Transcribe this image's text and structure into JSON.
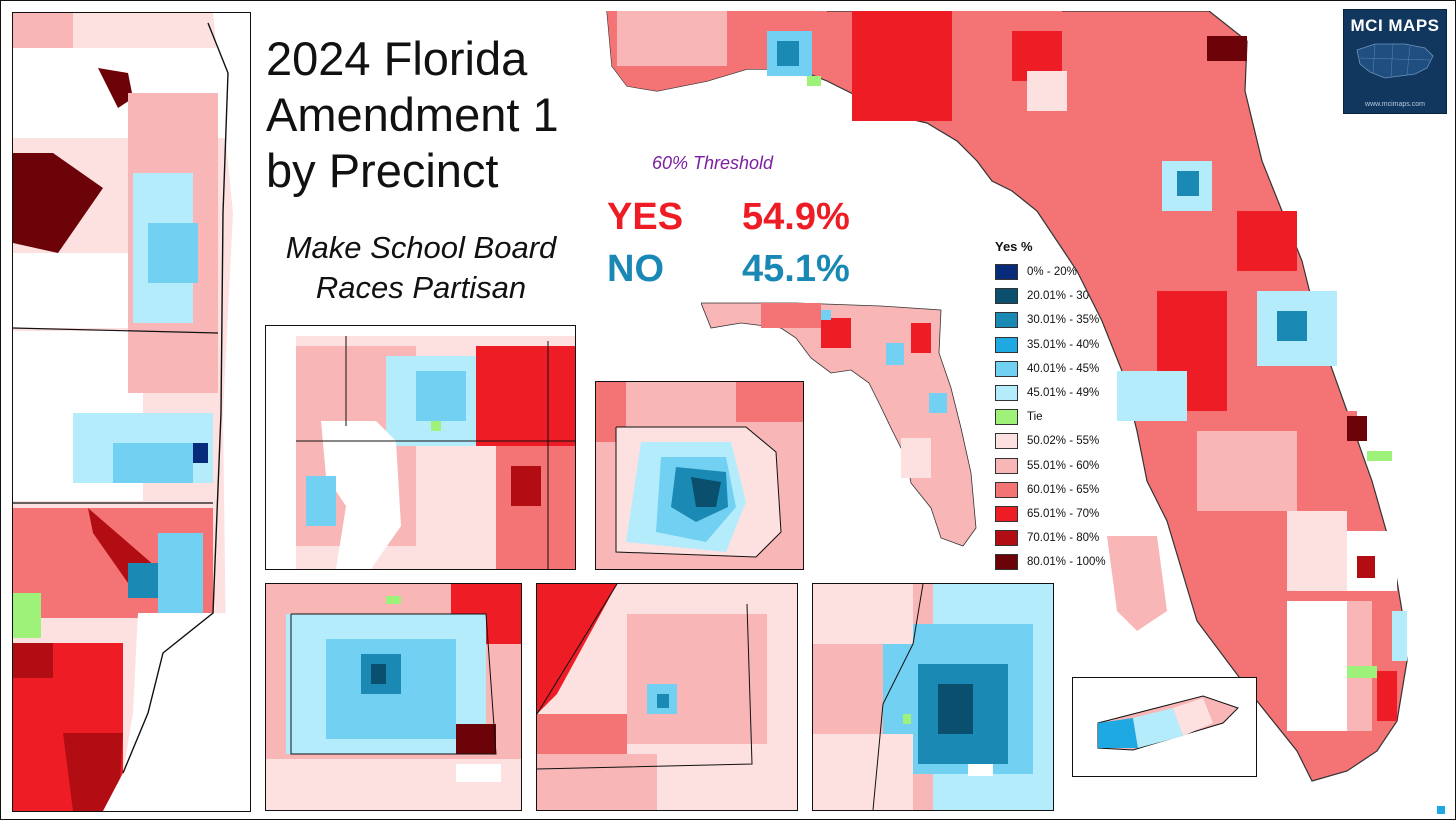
{
  "title": {
    "line1": "2024 Florida",
    "line2": "Amendment 1",
    "line3": "by Precinct"
  },
  "subtitle": {
    "line1": "Make School Board",
    "line2": "Races Partisan"
  },
  "threshold": "60% Threshold",
  "results": {
    "yes_label": "YES",
    "yes_value": "54.9%",
    "no_label": "NO",
    "no_value": "45.1%"
  },
  "legend": {
    "title": "Yes  %",
    "items": [
      {
        "label": "0% - 20%",
        "color": "#072a7a"
      },
      {
        "label": "20.01% - 30%",
        "color": "#0b4f6e"
      },
      {
        "label": "30.01% - 35%",
        "color": "#1a8ab5"
      },
      {
        "label": "35.01% - 40%",
        "color": "#1fa9e2"
      },
      {
        "label": "40.01% - 45%",
        "color": "#72d0f2"
      },
      {
        "label": "45.01% - 49%",
        "color": "#b5ecfb"
      },
      {
        "label": "Tie",
        "color": "#9ef27a"
      },
      {
        "label": "50.02% - 55%",
        "color": "#fde0e0"
      },
      {
        "label": "55.01% - 60%",
        "color": "#f9b6b7"
      },
      {
        "label": "60.01% - 65%",
        "color": "#f47476"
      },
      {
        "label": "65.01% - 70%",
        "color": "#ee1c25"
      },
      {
        "label": "70.01% - 80%",
        "color": "#b30d14"
      },
      {
        "label": "80.01% - 100%",
        "color": "#6b0308"
      }
    ]
  },
  "logo": {
    "text": "MCI MAPS",
    "url": "www.mcimaps.com"
  }
}
